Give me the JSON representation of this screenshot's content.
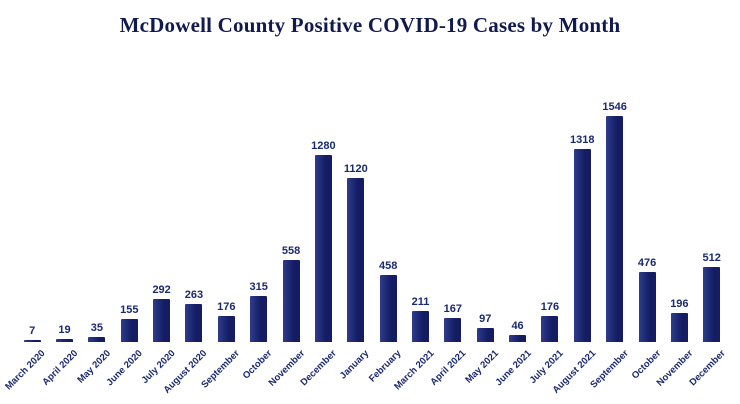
{
  "title": "McDowell County Positive COVID-19 Cases by Month",
  "chart_data": {
    "type": "bar",
    "title": "McDowell County Positive COVID-19 Cases by Month",
    "categories": [
      "March 2020",
      "April 2020",
      "May 2020",
      "June 2020",
      "July 2020",
      "August 2020",
      "September",
      "October",
      "November",
      "December",
      "January",
      "February",
      "March 2021",
      "April 2021",
      "May 2021",
      "June 2021",
      "July 2021",
      "August 2021",
      "September",
      "October",
      "November",
      "December"
    ],
    "values": [
      7,
      19,
      35,
      155,
      292,
      263,
      176,
      315,
      558,
      1280,
      1120,
      458,
      211,
      167,
      97,
      46,
      176,
      1318,
      1546,
      476,
      196,
      512
    ],
    "xlabel": "",
    "ylabel": "",
    "ylim": [
      0,
      1600
    ],
    "grid": false,
    "legend": false,
    "data_labels": true,
    "label_rotation_deg": 45,
    "colors": {
      "bar": "#141c63",
      "bar_light": "#2e3c8c",
      "label": "#1a2a6e",
      "title": "#101a4e",
      "background": "#ffffff"
    }
  }
}
